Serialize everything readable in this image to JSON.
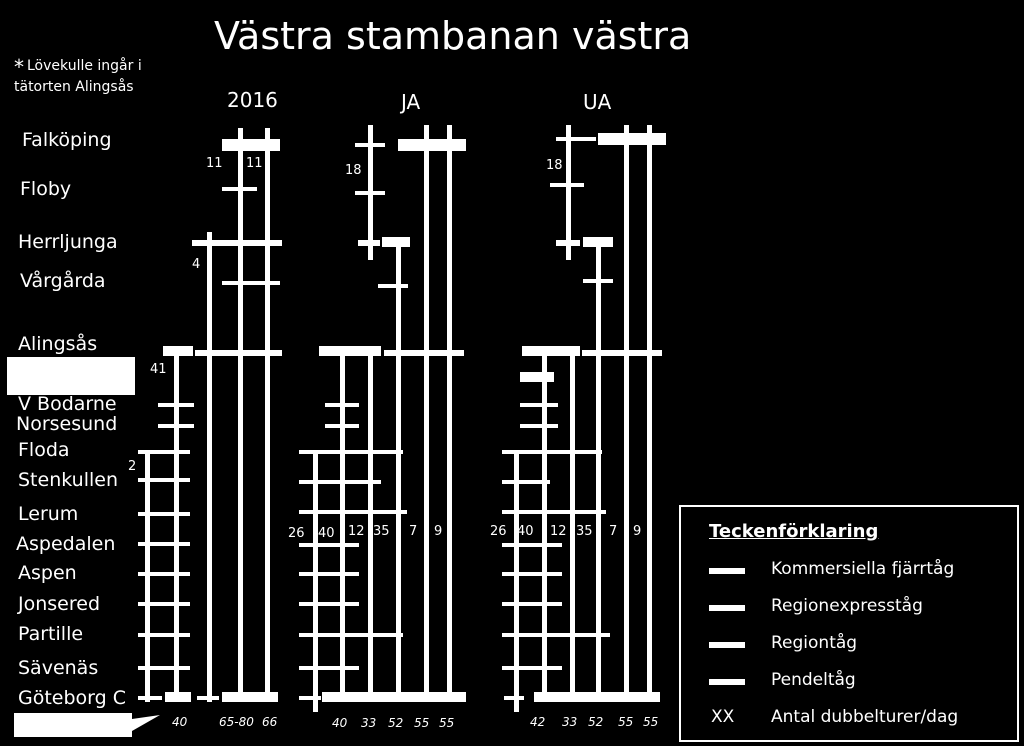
{
  "title": "Västra stambanan västra",
  "note": {
    "star": "*",
    "line1": "Lövekulle ingår i",
    "line2": "tätorten Alingsås"
  },
  "columns": [
    "2016",
    "JA",
    "UA"
  ],
  "stations": [
    "Falköping",
    "Floby",
    "Herrljunga",
    "Vårgårda",
    "Alingsås",
    "V Bodarne",
    "Norsesund",
    "Floda",
    "Stenkullen",
    "Lerum",
    "Aspedalen",
    "Aspen",
    "Jonsered",
    "Partille",
    "Sävenäs",
    "Göteborg C"
  ],
  "counts_2016": {
    "falkoping_a": "11",
    "falkoping_b": "11",
    "herrljunga": "4",
    "alingsas": "41",
    "floda": "2"
  },
  "counts_ja": {
    "floby": "18",
    "lerum": [
      "26",
      "40",
      "12",
      "35",
      "7",
      "9"
    ]
  },
  "counts_ua": {
    "floby": "18",
    "lerum": [
      "26",
      "40",
      "12",
      "35",
      "7",
      "9"
    ]
  },
  "bottom_2016": [
    "40",
    "65-80",
    "66"
  ],
  "bottom_ja": [
    "40",
    "33",
    "52",
    "55",
    "55"
  ],
  "bottom_ua": [
    "42",
    "33",
    "52",
    "55",
    "55"
  ],
  "legend": {
    "title": "Teckenförklaring",
    "items": [
      "Kommersiella fjärrtåg",
      "Regionexpresståg",
      "Regiontåg",
      "Pendeltåg"
    ],
    "xx_symbol": "XX",
    "xx_label": "Antal dubbelturer/dag"
  },
  "colors": {
    "background": "#000000",
    "foreground": "#ffffff"
  }
}
